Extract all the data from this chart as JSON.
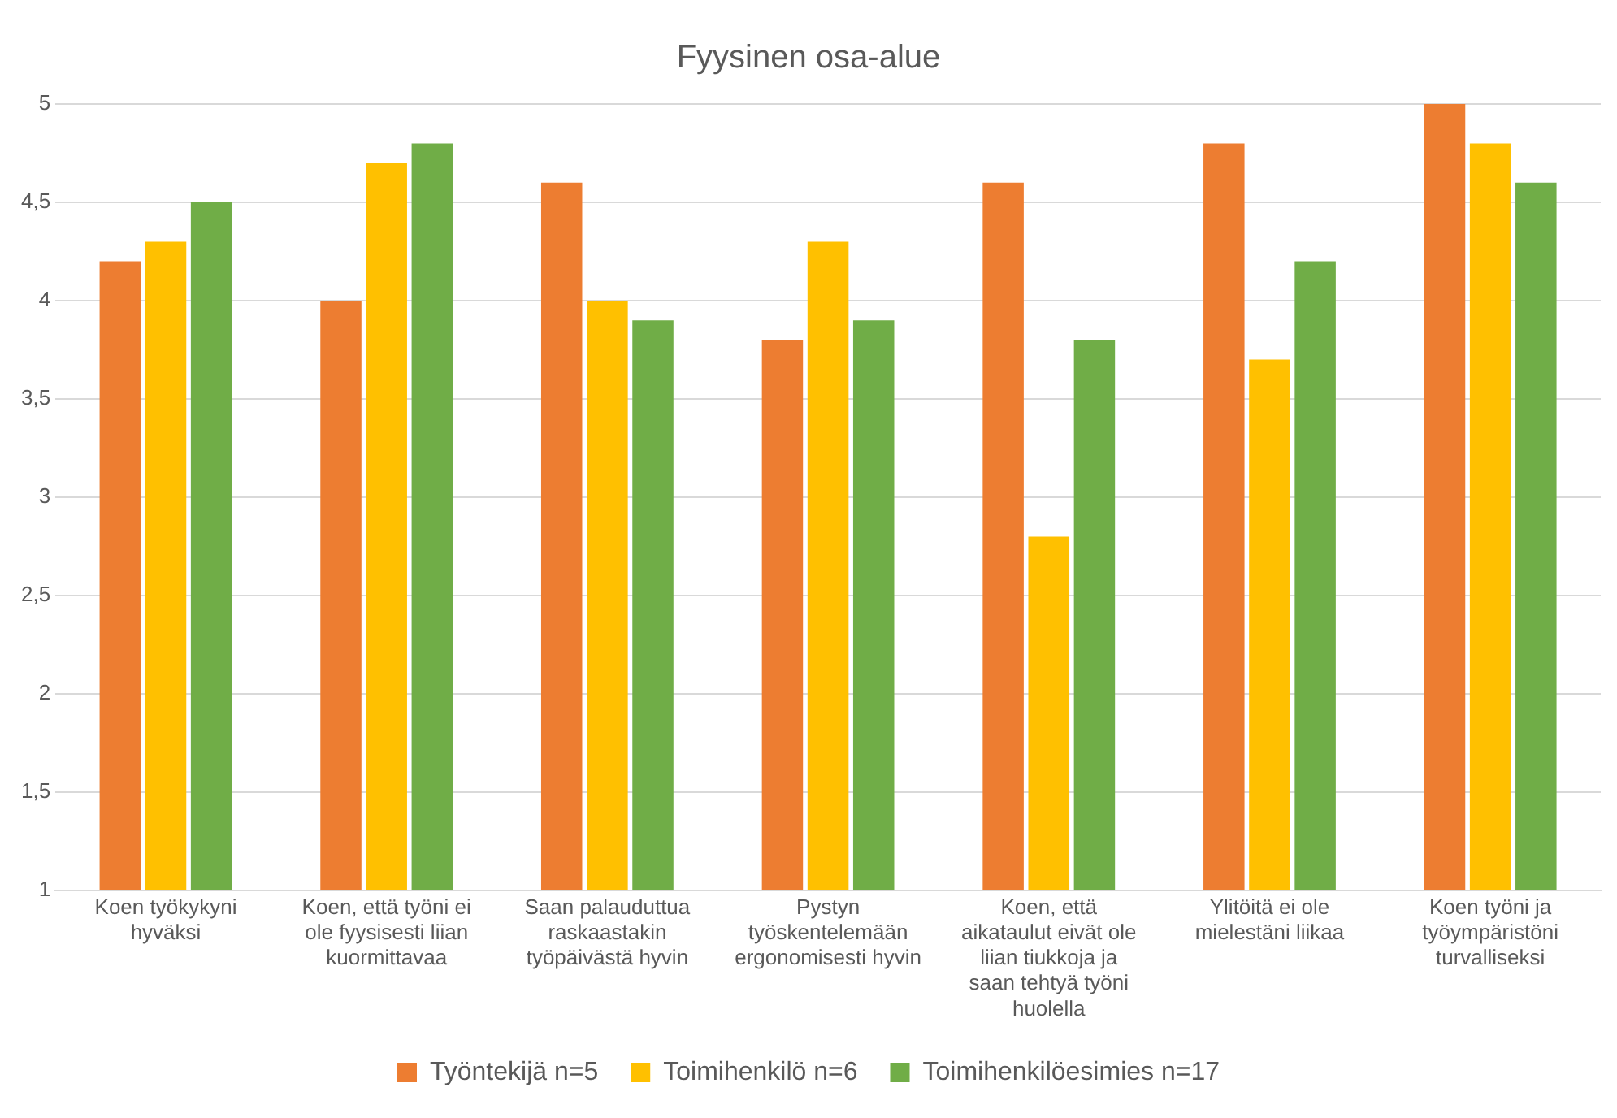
{
  "chart_data": {
    "type": "bar",
    "title": "Fyysinen osa-alue",
    "categories": [
      "Koen työkykyni hyväksi",
      "Koen, että työni ei ole fyysisesti liian kuormittavaa",
      "Saan palauduttua raskaastakin työpäivästä hyvin",
      "Pystyn työskentelemään ergonomisesti hyvin",
      "Koen, että aikataulut eivät ole liian tiukkoja ja saan tehtyä työni huolella",
      "Ylitöitä ei ole mielestäni liikaa",
      "Koen työni ja työympäristöni turvalliseksi"
    ],
    "series": [
      {
        "name": "Työntekijä n=5",
        "color": "#ed7d31",
        "values": [
          4.2,
          4.0,
          4.6,
          3.8,
          4.6,
          4.8,
          5.0
        ]
      },
      {
        "name": "Toimihenkilö n=6",
        "color": "#ffc000",
        "values": [
          4.3,
          4.7,
          4.0,
          4.3,
          2.8,
          3.7,
          4.8
        ]
      },
      {
        "name": "Toimihenkilöesimies n=17",
        "color": "#70ad47",
        "values": [
          4.5,
          4.8,
          3.9,
          3.9,
          3.8,
          4.2,
          4.6
        ]
      }
    ],
    "ylim": [
      1,
      5
    ],
    "yticks": [
      1,
      {
        "value": 1.5,
        "label": "1,5"
      },
      2,
      {
        "value": 2.5,
        "label": "2,5"
      },
      3,
      {
        "value": 3.5,
        "label": "3,5"
      },
      4,
      {
        "value": 4.5,
        "label": "4,5"
      },
      5
    ],
    "grid": "y",
    "legend": "bottom"
  }
}
